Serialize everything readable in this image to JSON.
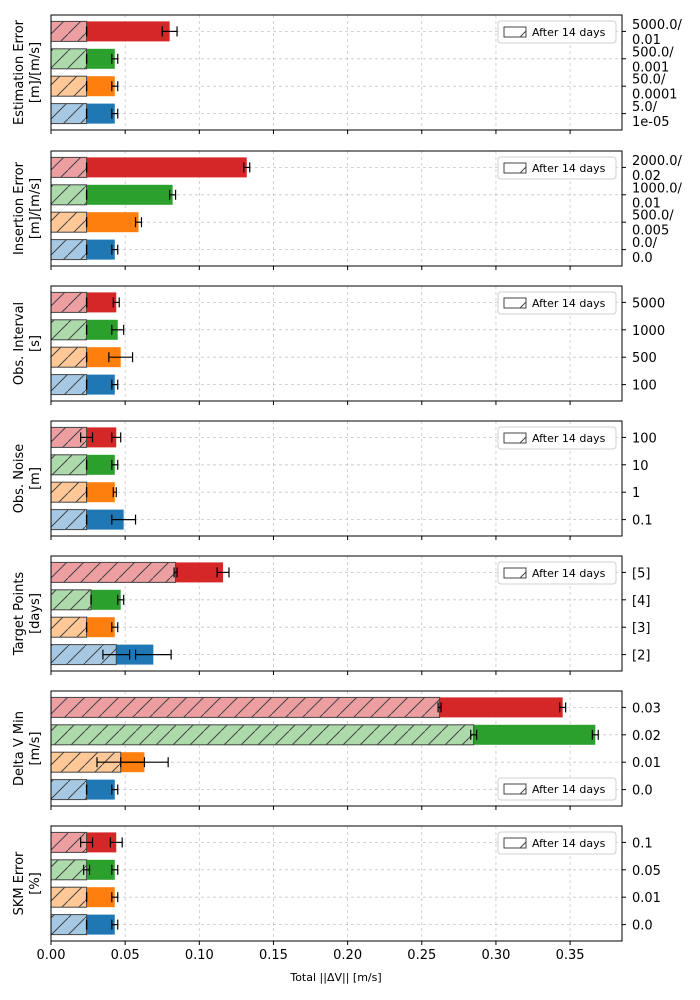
{
  "chart_data": {
    "type": "bar",
    "orientation": "horizontal",
    "xlabel": "Total ||ΔV|| [m/s]",
    "xlim": [
      0,
      0.385
    ],
    "xticks": [
      "0.00",
      "0.05",
      "0.10",
      "0.15",
      "0.20",
      "0.25",
      "0.30",
      "0.35"
    ],
    "xtick_values": [
      0,
      0.05,
      0.1,
      0.15,
      0.2,
      0.25,
      0.3,
      0.35
    ],
    "grid": true,
    "legend_label": "After 14 days",
    "colors": {
      "blue": "#1f77b4",
      "orange": "#ff7f0e",
      "green": "#2ca02c",
      "red": "#d62728",
      "blue_light": "#a6c8e3",
      "orange_light": "#ffc896",
      "green_light": "#acdaab",
      "red_light": "#ec9ea0"
    },
    "panels": [
      {
        "ylabel": [
          "Estimation Error",
          "[m]/[m/s]"
        ],
        "legend_position": "top-right",
        "categories": [
          [
            "5.0/",
            "1e-05"
          ],
          [
            "50.0/",
            "0.0001"
          ],
          [
            "500.0/",
            "0.001"
          ],
          [
            "5000.0/",
            "0.01"
          ]
        ],
        "total": [
          0.043,
          0.043,
          0.043,
          0.08
        ],
        "total_err": [
          0.002,
          0.002,
          0.002,
          0.005
        ],
        "after14": [
          0.024,
          0.024,
          0.024,
          0.024
        ],
        "after14_err": [
          0.0,
          0.0,
          0.0,
          0.0
        ]
      },
      {
        "ylabel": [
          "Insertion Error",
          "[m]/[m/s]"
        ],
        "legend_position": "top-right",
        "categories": [
          [
            "0.0/",
            "0.0"
          ],
          [
            "500.0/",
            "0.005"
          ],
          [
            "1000.0/",
            "0.01"
          ],
          [
            "2000.0/",
            "0.02"
          ]
        ],
        "total": [
          0.043,
          0.059,
          0.082,
          0.132
        ],
        "total_err": [
          0.002,
          0.002,
          0.002,
          0.002
        ],
        "after14": [
          0.024,
          0.024,
          0.024,
          0.024
        ],
        "after14_err": [
          0.0,
          0.0,
          0.0,
          0.0
        ]
      },
      {
        "ylabel": [
          "Obs. Interval",
          "[s]"
        ],
        "legend_position": "top-right",
        "categories": [
          [
            "100"
          ],
          [
            "500"
          ],
          [
            "1000"
          ],
          [
            "5000"
          ]
        ],
        "total": [
          0.043,
          0.047,
          0.045,
          0.044
        ],
        "total_err": [
          0.002,
          0.008,
          0.004,
          0.002
        ],
        "after14": [
          0.024,
          0.024,
          0.024,
          0.024
        ],
        "after14_err": [
          0.0,
          0.0,
          0.0,
          0.0
        ]
      },
      {
        "ylabel": [
          "Obs. Noise",
          "[m]"
        ],
        "legend_position": "top-right",
        "categories": [
          [
            "0.1"
          ],
          [
            "1"
          ],
          [
            "10"
          ],
          [
            "100"
          ]
        ],
        "total": [
          0.049,
          0.043,
          0.043,
          0.044
        ],
        "total_err": [
          0.008,
          0.001,
          0.002,
          0.003
        ],
        "after14": [
          0.024,
          0.024,
          0.024,
          0.024
        ],
        "after14_err": [
          0.0,
          0.0,
          0.0,
          0.004
        ]
      },
      {
        "ylabel": [
          "Target Points",
          "[days]"
        ],
        "legend_position": "top-right",
        "categories": [
          [
            "[2]"
          ],
          [
            "[3]"
          ],
          [
            "[4]"
          ],
          [
            "[5]"
          ]
        ],
        "total": [
          0.069,
          0.043,
          0.047,
          0.116
        ],
        "total_err": [
          0.012,
          0.002,
          0.002,
          0.004
        ],
        "after14": [
          0.044,
          0.024,
          0.027,
          0.084
        ],
        "after14_err": [
          0.009,
          0.0,
          0.0,
          0.001
        ]
      },
      {
        "ylabel": [
          "Delta V Min",
          "[m/s]"
        ],
        "legend_position": "bottom-right",
        "categories": [
          [
            "0.0"
          ],
          [
            "0.01"
          ],
          [
            "0.02"
          ],
          [
            "0.03"
          ]
        ],
        "total": [
          0.043,
          0.063,
          0.367,
          0.345
        ],
        "total_err": [
          0.002,
          0.016,
          0.002,
          0.002
        ],
        "after14": [
          0.024,
          0.047,
          0.285,
          0.262
        ],
        "after14_err": [
          0.0,
          0.016,
          0.002,
          0.001
        ]
      },
      {
        "ylabel": [
          "SKM Error",
          "[%]"
        ],
        "legend_position": "top-right",
        "categories": [
          [
            "0.0"
          ],
          [
            "0.01"
          ],
          [
            "0.05"
          ],
          [
            "0.1"
          ]
        ],
        "total": [
          0.043,
          0.043,
          0.043,
          0.044
        ],
        "total_err": [
          0.002,
          0.002,
          0.002,
          0.004
        ],
        "after14": [
          0.024,
          0.024,
          0.024,
          0.024
        ],
        "after14_err": [
          0.0,
          0.0,
          0.002,
          0.004
        ]
      }
    ]
  }
}
